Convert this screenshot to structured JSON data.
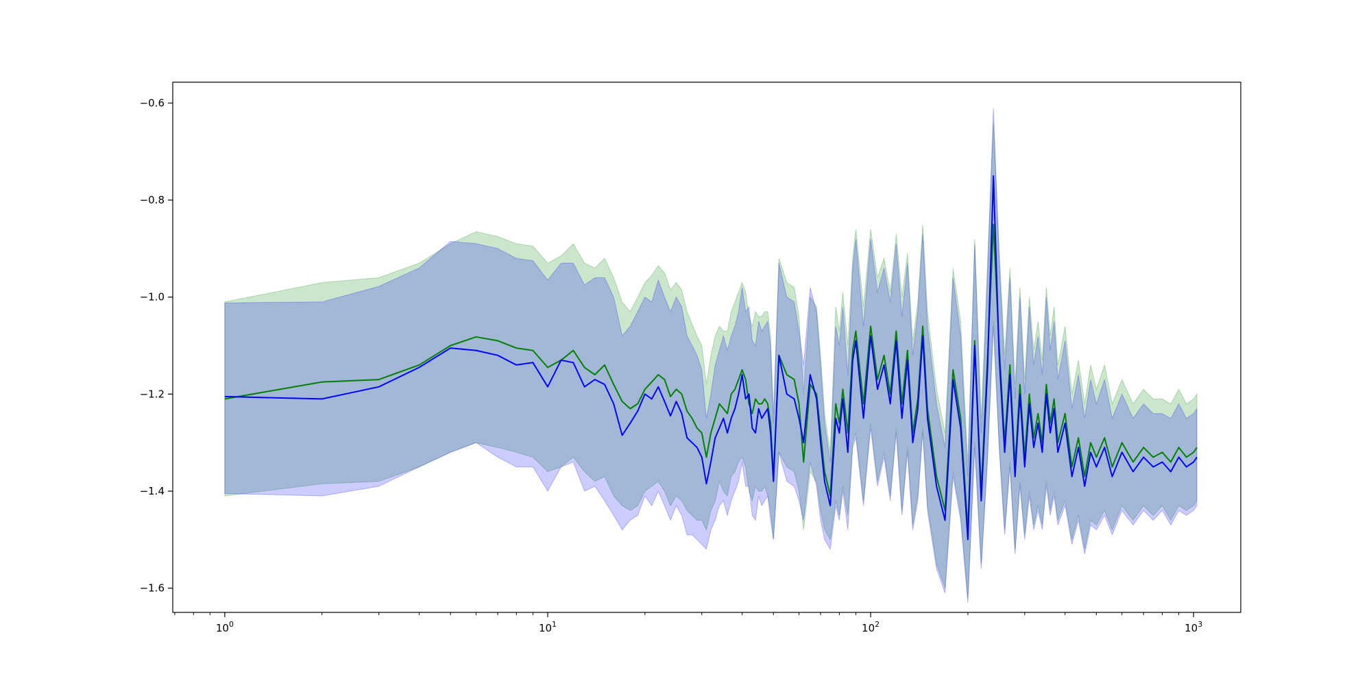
{
  "chart_data": {
    "type": "line",
    "title": "",
    "xlabel": "",
    "ylabel": "",
    "xscale": "log",
    "xlim": [
      0.69,
      1400
    ],
    "ylim": [
      -1.65,
      -0.557
    ],
    "grid": false,
    "x_ticks": [
      {
        "value": 1,
        "base": "10",
        "exp": "0"
      },
      {
        "value": 10,
        "base": "10",
        "exp": "1"
      },
      {
        "value": 100,
        "base": "10",
        "exp": "2"
      },
      {
        "value": 1000,
        "base": "10",
        "exp": "3"
      }
    ],
    "y_ticks": [
      {
        "value": -0.6,
        "label": "−0.6"
      },
      {
        "value": -0.8,
        "label": "−0.8"
      },
      {
        "value": -1.0,
        "label": "−1.0"
      },
      {
        "value": -1.2,
        "label": "−1.2"
      },
      {
        "value": -1.4,
        "label": "−1.4"
      },
      {
        "value": -1.6,
        "label": "−1.6"
      }
    ],
    "series": [
      {
        "color": "#008000",
        "band_color": "#008000",
        "band_opacity": 0.2,
        "x": [
          1,
          2,
          3,
          4,
          5,
          6,
          7,
          8,
          9,
          10,
          11,
          12,
          13,
          14,
          15,
          16,
          17,
          18,
          19,
          20,
          21,
          22,
          23,
          24,
          25,
          26,
          27,
          28,
          29,
          30,
          31,
          32,
          33,
          34,
          35,
          36,
          37,
          38,
          39,
          40,
          41,
          42,
          43,
          44,
          45,
          46,
          47,
          48,
          49,
          50,
          52,
          55,
          58,
          60,
          62,
          65,
          68,
          70,
          72,
          75,
          78,
          80,
          82,
          85,
          88,
          90,
          95,
          100,
          105,
          110,
          115,
          120,
          125,
          130,
          135,
          140,
          145,
          150,
          160,
          170,
          180,
          190,
          200,
          210,
          220,
          230,
          240,
          250,
          260,
          270,
          280,
          290,
          300,
          310,
          320,
          330,
          340,
          350,
          360,
          370,
          380,
          400,
          420,
          440,
          460,
          480,
          500,
          530,
          560,
          600,
          650,
          700,
          750,
          800,
          850,
          900,
          950,
          1000,
          1024
        ],
        "y": [
          -1.21,
          -1.175,
          -1.17,
          -1.14,
          -1.1,
          -1.082,
          -1.09,
          -1.105,
          -1.11,
          -1.145,
          -1.13,
          -1.11,
          -1.145,
          -1.16,
          -1.14,
          -1.18,
          -1.215,
          -1.23,
          -1.22,
          -1.19,
          -1.175,
          -1.16,
          -1.17,
          -1.205,
          -1.19,
          -1.2,
          -1.235,
          -1.25,
          -1.27,
          -1.28,
          -1.33,
          -1.28,
          -1.25,
          -1.22,
          -1.23,
          -1.24,
          -1.2,
          -1.19,
          -1.17,
          -1.15,
          -1.17,
          -1.22,
          -1.24,
          -1.21,
          -1.22,
          -1.22,
          -1.21,
          -1.22,
          -1.26,
          -1.37,
          -1.12,
          -1.16,
          -1.17,
          -1.22,
          -1.34,
          -1.18,
          -1.2,
          -1.28,
          -1.36,
          -1.41,
          -1.22,
          -1.26,
          -1.19,
          -1.28,
          -1.11,
          -1.07,
          -1.22,
          -1.06,
          -1.17,
          -1.12,
          -1.2,
          -1.07,
          -1.22,
          -1.11,
          -1.28,
          -1.21,
          -1.06,
          -1.23,
          -1.37,
          -1.44,
          -1.15,
          -1.25,
          -1.48,
          -1.09,
          -1.4,
          -1.13,
          -0.85,
          -1.1,
          -1.3,
          -1.14,
          -1.35,
          -1.18,
          -1.33,
          -1.2,
          -1.29,
          -1.24,
          -1.3,
          -1.18,
          -1.26,
          -1.21,
          -1.3,
          -1.24,
          -1.35,
          -1.29,
          -1.37,
          -1.3,
          -1.33,
          -1.29,
          -1.35,
          -1.3,
          -1.34,
          -1.31,
          -1.33,
          -1.32,
          -1.34,
          -1.31,
          -1.33,
          -1.32,
          -1.31
        ],
        "band_lower": [
          -1.41,
          -1.385,
          -1.38,
          -1.35,
          -1.32,
          -1.3,
          -1.31,
          -1.32,
          -1.33,
          -1.36,
          -1.35,
          -1.33,
          -1.36,
          -1.38,
          -1.37,
          -1.41,
          -1.43,
          -1.44,
          -1.43,
          -1.4,
          -1.39,
          -1.38,
          -1.4,
          -1.43,
          -1.41,
          -1.42,
          -1.44,
          -1.45,
          -1.46,
          -1.46,
          -1.48,
          -1.44,
          -1.42,
          -1.38,
          -1.4,
          -1.41,
          -1.37,
          -1.36,
          -1.34,
          -1.33,
          -1.35,
          -1.4,
          -1.42,
          -1.39,
          -1.4,
          -1.4,
          -1.39,
          -1.41,
          -1.44,
          -1.5,
          -1.32,
          -1.35,
          -1.36,
          -1.4,
          -1.48,
          -1.36,
          -1.38,
          -1.44,
          -1.48,
          -1.5,
          -1.42,
          -1.45,
          -1.39,
          -1.45,
          -1.3,
          -1.28,
          -1.42,
          -1.26,
          -1.38,
          -1.32,
          -1.41,
          -1.27,
          -1.44,
          -1.31,
          -1.47,
          -1.41,
          -1.27,
          -1.43,
          -1.55,
          -1.6,
          -1.36,
          -1.45,
          -1.62,
          -1.3,
          -1.55,
          -1.33,
          -1.05,
          -1.3,
          -1.48,
          -1.34,
          -1.52,
          -1.38,
          -1.49,
          -1.4,
          -1.47,
          -1.43,
          -1.47,
          -1.38,
          -1.44,
          -1.4,
          -1.46,
          -1.42,
          -1.5,
          -1.45,
          -1.52,
          -1.46,
          -1.47,
          -1.44,
          -1.48,
          -1.43,
          -1.46,
          -1.43,
          -1.45,
          -1.43,
          -1.46,
          -1.43,
          -1.44,
          -1.43,
          -1.42
        ],
        "band_upper": [
          -1.01,
          -0.97,
          -0.96,
          -0.93,
          -0.89,
          -0.865,
          -0.875,
          -0.89,
          -0.895,
          -0.93,
          -0.915,
          -0.89,
          -0.93,
          -0.94,
          -0.92,
          -0.96,
          -1.01,
          -1.03,
          -1.0,
          -0.97,
          -0.955,
          -0.935,
          -0.95,
          -0.985,
          -0.97,
          -0.985,
          -1.03,
          -1.055,
          -1.08,
          -1.1,
          -1.18,
          -1.12,
          -1.08,
          -1.06,
          -1.07,
          -1.07,
          -1.03,
          -1.01,
          -0.99,
          -0.97,
          -0.99,
          -1.04,
          -1.06,
          -1.03,
          -1.04,
          -1.04,
          -1.03,
          -1.03,
          -1.08,
          -1.24,
          -0.92,
          -0.97,
          -0.98,
          -1.04,
          -1.2,
          -1.0,
          -1.02,
          -1.12,
          -1.24,
          -1.32,
          -1.02,
          -1.07,
          -0.99,
          -1.1,
          -0.92,
          -0.86,
          -1.02,
          -0.86,
          -0.96,
          -0.92,
          -0.99,
          -0.87,
          -1.0,
          -0.91,
          -1.09,
          -1.01,
          -0.85,
          -1.03,
          -1.19,
          -1.28,
          -0.94,
          -1.05,
          -1.34,
          -0.88,
          -1.25,
          -0.93,
          -0.64,
          -0.9,
          -1.12,
          -0.94,
          -1.18,
          -0.98,
          -1.17,
          -1.0,
          -1.11,
          -1.05,
          -1.13,
          -0.98,
          -1.08,
          -1.02,
          -1.14,
          -1.06,
          -1.2,
          -1.13,
          -1.22,
          -1.14,
          -1.19,
          -1.14,
          -1.22,
          -1.17,
          -1.22,
          -1.19,
          -1.21,
          -1.21,
          -1.22,
          -1.19,
          -1.22,
          -1.21,
          -1.2
        ]
      },
      {
        "color": "#0000ff",
        "band_color": "#0000ff",
        "band_opacity": 0.2,
        "x": [
          1,
          2,
          3,
          4,
          5,
          6,
          7,
          8,
          9,
          10,
          11,
          12,
          13,
          14,
          15,
          16,
          17,
          18,
          19,
          20,
          21,
          22,
          23,
          24,
          25,
          26,
          27,
          28,
          29,
          30,
          31,
          32,
          33,
          34,
          35,
          36,
          37,
          38,
          39,
          40,
          41,
          42,
          43,
          44,
          45,
          46,
          47,
          48,
          49,
          50,
          52,
          55,
          58,
          60,
          62,
          65,
          68,
          70,
          72,
          75,
          78,
          80,
          82,
          85,
          88,
          90,
          95,
          100,
          105,
          110,
          115,
          120,
          125,
          130,
          135,
          140,
          145,
          150,
          160,
          170,
          180,
          190,
          200,
          210,
          220,
          230,
          240,
          250,
          260,
          270,
          280,
          290,
          300,
          310,
          320,
          330,
          340,
          350,
          360,
          370,
          380,
          400,
          420,
          440,
          460,
          480,
          500,
          530,
          560,
          600,
          650,
          700,
          750,
          800,
          850,
          900,
          950,
          1000,
          1024
        ],
        "y": [
          -1.205,
          -1.21,
          -1.185,
          -1.145,
          -1.105,
          -1.11,
          -1.12,
          -1.14,
          -1.135,
          -1.185,
          -1.13,
          -1.135,
          -1.185,
          -1.17,
          -1.18,
          -1.22,
          -1.285,
          -1.26,
          -1.235,
          -1.2,
          -1.21,
          -1.185,
          -1.215,
          -1.245,
          -1.215,
          -1.24,
          -1.29,
          -1.3,
          -1.31,
          -1.33,
          -1.385,
          -1.34,
          -1.29,
          -1.27,
          -1.25,
          -1.28,
          -1.25,
          -1.23,
          -1.2,
          -1.16,
          -1.21,
          -1.2,
          -1.27,
          -1.28,
          -1.23,
          -1.25,
          -1.24,
          -1.23,
          -1.28,
          -1.38,
          -1.12,
          -1.2,
          -1.21,
          -1.25,
          -1.3,
          -1.16,
          -1.21,
          -1.3,
          -1.38,
          -1.43,
          -1.25,
          -1.28,
          -1.21,
          -1.32,
          -1.13,
          -1.09,
          -1.25,
          -1.08,
          -1.19,
          -1.14,
          -1.22,
          -1.09,
          -1.25,
          -1.13,
          -1.3,
          -1.23,
          -1.08,
          -1.25,
          -1.39,
          -1.46,
          -1.17,
          -1.27,
          -1.5,
          -1.1,
          -1.42,
          -1.15,
          -0.75,
          -1.12,
          -1.32,
          -1.16,
          -1.37,
          -1.2,
          -1.35,
          -1.22,
          -1.31,
          -1.26,
          -1.32,
          -1.2,
          -1.28,
          -1.23,
          -1.32,
          -1.26,
          -1.37,
          -1.31,
          -1.39,
          -1.32,
          -1.35,
          -1.31,
          -1.37,
          -1.32,
          -1.36,
          -1.33,
          -1.35,
          -1.34,
          -1.36,
          -1.33,
          -1.35,
          -1.34,
          -1.33
        ],
        "band_lower": [
          -1.405,
          -1.41,
          -1.39,
          -1.35,
          -1.32,
          -1.3,
          -1.33,
          -1.35,
          -1.35,
          -1.4,
          -1.35,
          -1.34,
          -1.4,
          -1.39,
          -1.42,
          -1.45,
          -1.48,
          -1.46,
          -1.45,
          -1.41,
          -1.43,
          -1.4,
          -1.43,
          -1.46,
          -1.43,
          -1.45,
          -1.49,
          -1.49,
          -1.5,
          -1.51,
          -1.52,
          -1.48,
          -1.46,
          -1.43,
          -1.42,
          -1.45,
          -1.42,
          -1.4,
          -1.38,
          -1.34,
          -1.39,
          -1.39,
          -1.45,
          -1.46,
          -1.41,
          -1.43,
          -1.42,
          -1.41,
          -1.46,
          -1.5,
          -1.32,
          -1.38,
          -1.39,
          -1.42,
          -1.46,
          -1.34,
          -1.39,
          -1.46,
          -1.5,
          -1.52,
          -1.43,
          -1.46,
          -1.4,
          -1.48,
          -1.31,
          -1.29,
          -1.43,
          -1.27,
          -1.39,
          -1.33,
          -1.42,
          -1.28,
          -1.45,
          -1.32,
          -1.48,
          -1.42,
          -1.28,
          -1.44,
          -1.56,
          -1.61,
          -1.37,
          -1.46,
          -1.63,
          -1.31,
          -1.56,
          -1.34,
          -1.06,
          -1.31,
          -1.49,
          -1.35,
          -1.53,
          -1.39,
          -1.5,
          -1.41,
          -1.48,
          -1.44,
          -1.48,
          -1.39,
          -1.45,
          -1.41,
          -1.47,
          -1.43,
          -1.51,
          -1.46,
          -1.53,
          -1.47,
          -1.48,
          -1.45,
          -1.49,
          -1.44,
          -1.47,
          -1.44,
          -1.46,
          -1.44,
          -1.47,
          -1.44,
          -1.45,
          -1.44,
          -1.43
        ],
        "band_upper": [
          -1.012,
          -1.01,
          -0.978,
          -0.94,
          -0.885,
          -0.89,
          -0.9,
          -0.92,
          -0.925,
          -0.965,
          -0.93,
          -0.93,
          -0.975,
          -0.96,
          -0.96,
          -1.0,
          -1.08,
          -1.06,
          -1.03,
          -1.0,
          -1.01,
          -0.965,
          -1.0,
          -1.03,
          -1.0,
          -1.02,
          -1.08,
          -1.1,
          -1.12,
          -1.15,
          -1.25,
          -1.2,
          -1.14,
          -1.11,
          -1.08,
          -1.11,
          -1.08,
          -1.06,
          -1.03,
          -0.98,
          -1.03,
          -1.02,
          -1.09,
          -1.1,
          -1.05,
          -1.07,
          -1.06,
          -1.05,
          -1.1,
          -1.26,
          -0.93,
          -1.0,
          -1.01,
          -1.07,
          -1.14,
          -0.98,
          -1.03,
          -1.14,
          -1.26,
          -1.34,
          -1.06,
          -1.1,
          -1.02,
          -1.16,
          -0.94,
          -0.88,
          -1.06,
          -0.88,
          -0.99,
          -0.94,
          -1.01,
          -0.89,
          -1.04,
          -0.93,
          -1.12,
          -1.03,
          -0.87,
          -1.06,
          -1.22,
          -1.31,
          -0.96,
          -1.08,
          -1.37,
          -0.89,
          -1.28,
          -0.96,
          -0.61,
          -0.92,
          -1.15,
          -0.96,
          -1.21,
          -1.0,
          -1.2,
          -1.02,
          -1.14,
          -1.08,
          -1.16,
          -1.0,
          -1.11,
          -1.05,
          -1.17,
          -1.09,
          -1.23,
          -1.16,
          -1.25,
          -1.17,
          -1.22,
          -1.17,
          -1.25,
          -1.2,
          -1.25,
          -1.22,
          -1.24,
          -1.24,
          -1.25,
          -1.22,
          -1.25,
          -1.24,
          -1.23
        ]
      }
    ]
  }
}
